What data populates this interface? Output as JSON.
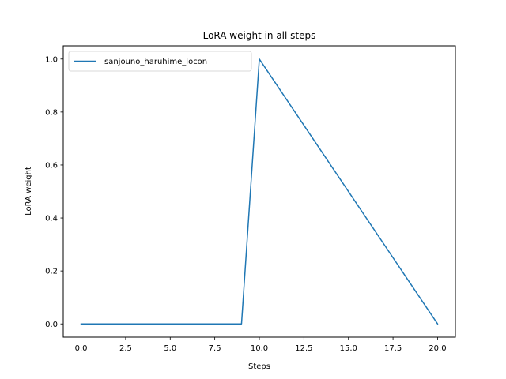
{
  "chart_data": {
    "type": "line",
    "title": "LoRA weight in all steps",
    "xlabel": "Steps",
    "ylabel": "LoRA weight",
    "xlim": [
      -1.0,
      21.0
    ],
    "ylim": [
      -0.05,
      1.05
    ],
    "xticks": [
      0.0,
      2.5,
      5.0,
      7.5,
      10.0,
      12.5,
      15.0,
      17.5,
      20.0
    ],
    "xtick_labels": [
      "0.0",
      "2.5",
      "5.0",
      "7.5",
      "10.0",
      "12.5",
      "15.0",
      "17.5",
      "20.0"
    ],
    "yticks": [
      0.0,
      0.2,
      0.4,
      0.6,
      0.8,
      1.0
    ],
    "ytick_labels": [
      "0.0",
      "0.2",
      "0.4",
      "0.6",
      "0.8",
      "1.0"
    ],
    "grid": false,
    "legend_position": "top-left",
    "series": [
      {
        "name": "sanjouno_haruhime_locon",
        "color": "#1f77b4",
        "x": [
          0,
          9,
          10,
          20
        ],
        "y": [
          0.0,
          0.0,
          1.0,
          0.0
        ]
      }
    ]
  }
}
